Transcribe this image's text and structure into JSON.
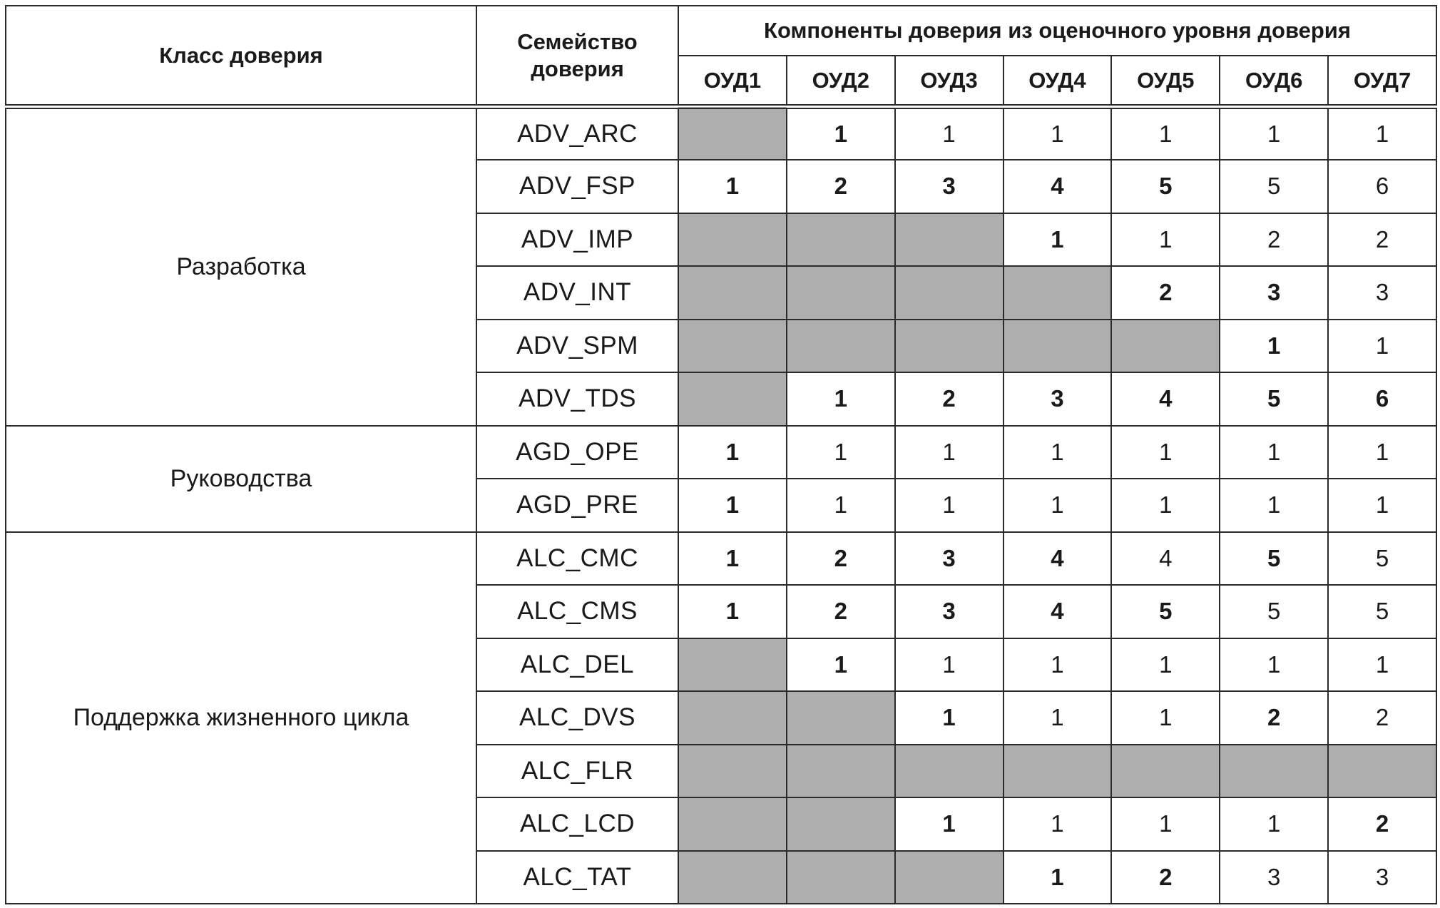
{
  "header": {
    "class_label": "Класс доверия",
    "family_label": "Семейство доверия",
    "components_label": "Компоненты доверия из оценочного уровня доверия",
    "levels": [
      "ОУД1",
      "ОУД2",
      "ОУД3",
      "ОУД4",
      "ОУД5",
      "ОУД6",
      "ОУД7"
    ]
  },
  "empty_cell_color": "#aeaeae",
  "classes": [
    {
      "name": "Разработка",
      "families": [
        {
          "name": "ADV_ARC",
          "cells": [
            null,
            {
              "v": "1",
              "b": true
            },
            {
              "v": "1"
            },
            {
              "v": "1"
            },
            {
              "v": "1"
            },
            {
              "v": "1"
            },
            {
              "v": "1"
            }
          ]
        },
        {
          "name": "ADV_FSP",
          "cells": [
            {
              "v": "1",
              "b": true
            },
            {
              "v": "2",
              "b": true
            },
            {
              "v": "3",
              "b": true
            },
            {
              "v": "4",
              "b": true
            },
            {
              "v": "5",
              "b": true
            },
            {
              "v": "5"
            },
            {
              "v": "6"
            }
          ]
        },
        {
          "name": "ADV_IMP",
          "cells": [
            null,
            null,
            null,
            {
              "v": "1",
              "b": true
            },
            {
              "v": "1"
            },
            {
              "v": "2"
            },
            {
              "v": "2"
            }
          ]
        },
        {
          "name": "ADV_INT",
          "cells": [
            null,
            null,
            null,
            null,
            {
              "v": "2",
              "b": true
            },
            {
              "v": "3",
              "b": true
            },
            {
              "v": "3"
            }
          ]
        },
        {
          "name": "ADV_SPM",
          "cells": [
            null,
            null,
            null,
            null,
            null,
            {
              "v": "1",
              "b": true
            },
            {
              "v": "1"
            }
          ]
        },
        {
          "name": "ADV_TDS",
          "cells": [
            null,
            {
              "v": "1",
              "b": true
            },
            {
              "v": "2",
              "b": true
            },
            {
              "v": "3",
              "b": true
            },
            {
              "v": "4",
              "b": true
            },
            {
              "v": "5",
              "b": true
            },
            {
              "v": "6",
              "b": true
            }
          ]
        }
      ]
    },
    {
      "name": "Руководства",
      "families": [
        {
          "name": "AGD_OPE",
          "cells": [
            {
              "v": "1",
              "b": true
            },
            {
              "v": "1"
            },
            {
              "v": "1"
            },
            {
              "v": "1"
            },
            {
              "v": "1"
            },
            {
              "v": "1"
            },
            {
              "v": "1"
            }
          ]
        },
        {
          "name": "AGD_PRE",
          "cells": [
            {
              "v": "1",
              "b": true
            },
            {
              "v": "1"
            },
            {
              "v": "1"
            },
            {
              "v": "1"
            },
            {
              "v": "1"
            },
            {
              "v": "1"
            },
            {
              "v": "1"
            }
          ]
        }
      ]
    },
    {
      "name": "Поддержка жизненного цикла",
      "families": [
        {
          "name": "ALC_CMC",
          "cells": [
            {
              "v": "1",
              "b": true
            },
            {
              "v": "2",
              "b": true
            },
            {
              "v": "3",
              "b": true
            },
            {
              "v": "4",
              "b": true
            },
            {
              "v": "4"
            },
            {
              "v": "5",
              "b": true
            },
            {
              "v": "5"
            }
          ]
        },
        {
          "name": "ALC_CMS",
          "cells": [
            {
              "v": "1",
              "b": true
            },
            {
              "v": "2",
              "b": true
            },
            {
              "v": "3",
              "b": true
            },
            {
              "v": "4",
              "b": true
            },
            {
              "v": "5",
              "b": true
            },
            {
              "v": "5"
            },
            {
              "v": "5"
            }
          ]
        },
        {
          "name": "ALC_DEL",
          "cells": [
            null,
            {
              "v": "1",
              "b": true
            },
            {
              "v": "1"
            },
            {
              "v": "1"
            },
            {
              "v": "1"
            },
            {
              "v": "1"
            },
            {
              "v": "1"
            }
          ]
        },
        {
          "name": "ALC_DVS",
          "cells": [
            null,
            null,
            {
              "v": "1",
              "b": true
            },
            {
              "v": "1"
            },
            {
              "v": "1"
            },
            {
              "v": "2",
              "b": true
            },
            {
              "v": "2"
            }
          ]
        },
        {
          "name": "ALC_FLR",
          "cells": [
            null,
            null,
            null,
            null,
            null,
            null,
            null
          ]
        },
        {
          "name": "ALC_LCD",
          "cells": [
            null,
            null,
            {
              "v": "1",
              "b": true
            },
            {
              "v": "1"
            },
            {
              "v": "1"
            },
            {
              "v": "1"
            },
            {
              "v": "2",
              "b": true
            }
          ]
        },
        {
          "name": "ALC_TAT",
          "cells": [
            null,
            null,
            null,
            {
              "v": "1",
              "b": true
            },
            {
              "v": "2",
              "b": true
            },
            {
              "v": "3"
            },
            {
              "v": "3"
            }
          ]
        }
      ]
    }
  ]
}
